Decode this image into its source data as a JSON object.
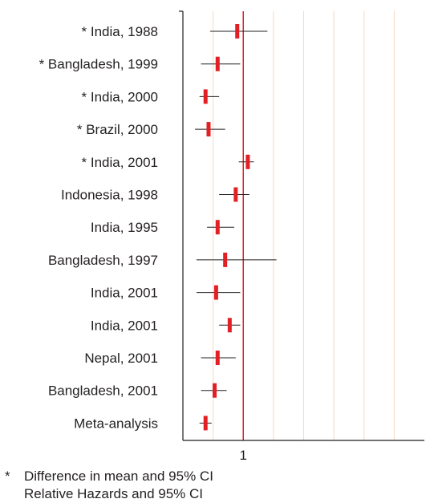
{
  "chart_data": {
    "type": "forest",
    "x_tick_labels": [
      "1"
    ],
    "reference_value": 1,
    "xlim": [
      0.6,
      2.2
    ],
    "gridlines": [
      0.8,
      1.0,
      1.2,
      1.4,
      1.6,
      1.8,
      2.0
    ],
    "studies": [
      {
        "label": "* India, 1988",
        "estimate": 0.96,
        "lower": 0.78,
        "upper": 1.16
      },
      {
        "label": "* Bangladesh, 1999",
        "estimate": 0.83,
        "lower": 0.72,
        "upper": 0.98
      },
      {
        "label": "* India, 2000",
        "estimate": 0.75,
        "lower": 0.71,
        "upper": 0.84
      },
      {
        "label": "* Brazil, 2000",
        "estimate": 0.77,
        "lower": 0.68,
        "upper": 0.88
      },
      {
        "label": "* India, 2001",
        "estimate": 1.03,
        "lower": 0.97,
        "upper": 1.07
      },
      {
        "label": "Indonesia, 1998",
        "estimate": 0.95,
        "lower": 0.84,
        "upper": 1.04
      },
      {
        "label": "India, 1995",
        "estimate": 0.83,
        "lower": 0.76,
        "upper": 0.94
      },
      {
        "label": "Bangladesh, 1997",
        "estimate": 0.88,
        "lower": 0.69,
        "upper": 1.22
      },
      {
        "label": "India, 2001",
        "estimate": 0.82,
        "lower": 0.69,
        "upper": 0.98
      },
      {
        "label": "India, 2001",
        "estimate": 0.91,
        "lower": 0.84,
        "upper": 0.98
      },
      {
        "label": "Nepal, 2001",
        "estimate": 0.83,
        "lower": 0.72,
        "upper": 0.95
      },
      {
        "label": "Bangladesh, 2001",
        "estimate": 0.81,
        "lower": 0.72,
        "upper": 0.89
      },
      {
        "label": "Meta-analysis",
        "estimate": 0.75,
        "lower": 0.71,
        "upper": 0.79
      }
    ],
    "colors": {
      "estimate": "#e31f26",
      "reference": "#e31f26",
      "ci": "#231f20",
      "grid": "#f4d9c4",
      "axis": "#231f20"
    }
  },
  "footnotes": [
    {
      "mark": "*",
      "text": "Difference in mean and 95% CI"
    },
    {
      "mark": "",
      "text": "Relative Hazards and 95% CI"
    }
  ]
}
